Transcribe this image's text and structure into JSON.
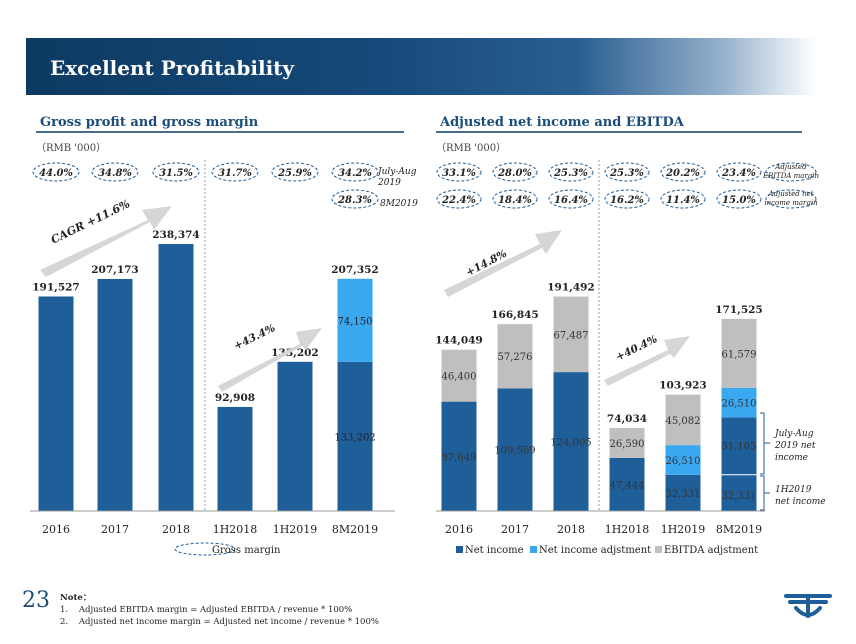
{
  "page": {
    "title": "Excellent Profitability",
    "page_number": "23"
  },
  "left": {
    "section_title": "Gross profit and gross margin",
    "unit": "（RMB '000）",
    "legend_label": "Gross margin",
    "cagr": "CAGR +11.6%",
    "growth": "+43.4%",
    "note_jul": "July-Aug 2019",
    "note_8m": "8M2019",
    "margins": [
      "44.0%",
      "34.8%",
      "31.5%",
      "31.7%",
      "25.9%",
      "34.2%"
    ],
    "margin_8m": "28.3%"
  },
  "right": {
    "section_title": "Adjusted net income and EBITDA",
    "unit": "（RMB '000）",
    "growth_1": "+14.8%",
    "growth_2": "+40.4%",
    "ebitda_margins": [
      "33.1%",
      "28.0%",
      "25.3%",
      "25.3%",
      "20.2%",
      "23.4%"
    ],
    "ni_margins": [
      "22.4%",
      "18.4%",
      "16.4%",
      "16.2%",
      "11.4%",
      "15.0%"
    ],
    "ebitda_margin_label": "Adjusted EBITDA margin",
    "ni_margin_label": "Adjusted net income margin",
    "bracket_jul": "July-Aug 2019 net income",
    "bracket_1h": "1H2019 net income",
    "legend": [
      "Net income",
      "Net income adjstment",
      "EBITDA adjstment"
    ]
  },
  "colors": {
    "dark": "#1f5f99",
    "light": "#3aa8f0",
    "grey": "#bfbfbf"
  },
  "chart_data": [
    {
      "type": "bar",
      "categories": [
        "2016",
        "2017",
        "2018",
        "1H2018",
        "1H2019",
        "8M2019"
      ],
      "series": [
        {
          "name": "",
          "values": [
            191527,
            207173,
            238374,
            92908,
            133202,
            133202
          ]
        },
        {
          "name": "",
          "values": [
            0,
            0,
            0,
            0,
            0,
            74150
          ]
        }
      ],
      "totals": [
        191527,
        207173,
        238374,
        92908,
        133202,
        207352
      ],
      "ylim": [
        0,
        250000
      ]
    },
    {
      "type": "bar",
      "categories": [
        "2016",
        "2017",
        "2018",
        "1H2018",
        "1H2019",
        "8M2019"
      ],
      "series": [
        {
          "name": "Net income",
          "values": [
            97649,
            109569,
            124005,
            47444,
            32331,
            83436
          ]
        },
        {
          "name": "Net income adjstment",
          "values": [
            0,
            0,
            0,
            0,
            26510,
            26510
          ]
        },
        {
          "name": "EBITDA adjstment",
          "values": [
            46400,
            57276,
            67487,
            26590,
            45082,
            61579
          ]
        }
      ],
      "segment_labels": {
        "net_income": [
          "97,649",
          "109,569",
          "124,005",
          "47,444",
          "32,331",
          "32,331"
        ],
        "net_income_jul_aug_8m": "51,105",
        "adjustment": [
          "",
          "",
          "",
          "",
          "26,510",
          "26,510"
        ],
        "ebitda": [
          "46,400",
          "57,276",
          "67,487",
          "26,590",
          "45,082",
          "61,579"
        ]
      },
      "totals": [
        144049,
        166845,
        191492,
        74034,
        103923,
        171525
      ],
      "ylim": [
        0,
        250000
      ]
    }
  ]
}
